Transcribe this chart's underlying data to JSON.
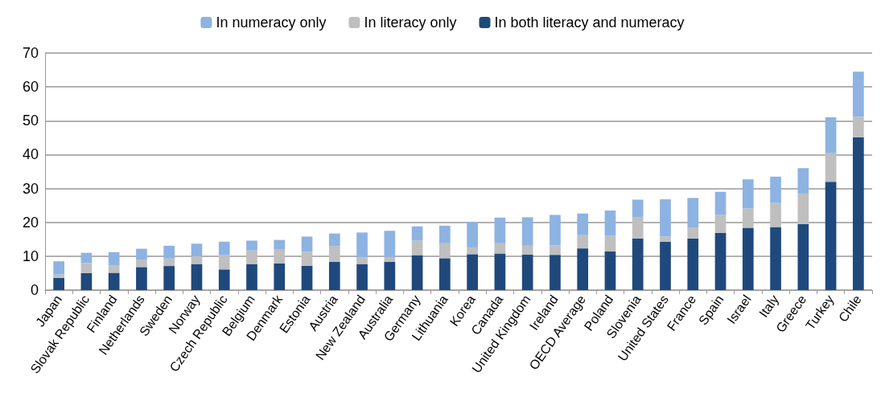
{
  "chart_data": {
    "type": "bar",
    "stacked": true,
    "categories": [
      "Japan",
      "Slovak Republic",
      "Finland",
      "Netherlands",
      "Sweden",
      "Norway",
      "Czech Republic",
      "Belgium",
      "Denmark",
      "Estonia",
      "Austria",
      "New Zealand",
      "Australia",
      "Germany",
      "Lithuania",
      "Korea",
      "Canada",
      "United Kingdom",
      "Ireland",
      "OECD Average",
      "Poland",
      "Slovenia",
      "United States",
      "France",
      "Spain",
      "Israel",
      "Italy",
      "Greece",
      "Turkey",
      "Chile"
    ],
    "series": [
      {
        "name": "In both literacy and numeracy",
        "color": "#1f497d",
        "values": [
          3.6,
          5.0,
          5.1,
          6.8,
          7.1,
          7.7,
          6.1,
          7.7,
          7.9,
          7.2,
          8.3,
          7.7,
          8.3,
          10.3,
          9.4,
          10.6,
          10.8,
          10.5,
          10.4,
          12.3,
          11.4,
          15.2,
          14.3,
          15.2,
          16.9,
          18.4,
          18.6,
          19.5,
          32.0,
          45.1
        ]
      },
      {
        "name": "In literacy only",
        "color": "#bfbfbf",
        "values": [
          1.0,
          3.0,
          2.1,
          2.2,
          2.2,
          2.3,
          4.2,
          4.0,
          4.2,
          4.1,
          4.7,
          1.9,
          1.5,
          4.3,
          4.4,
          2.0,
          3.0,
          2.6,
          2.8,
          3.9,
          4.6,
          6.4,
          1.5,
          3.3,
          5.3,
          5.7,
          7.1,
          9.0,
          8.4,
          6.1
        ]
      },
      {
        "name": "In numeracy only",
        "color": "#8db3e2",
        "values": [
          3.9,
          3.0,
          4.0,
          3.2,
          3.8,
          3.7,
          4.0,
          2.9,
          2.7,
          4.5,
          3.7,
          7.4,
          7.7,
          4.2,
          5.2,
          7.5,
          7.6,
          8.4,
          9.0,
          6.4,
          7.5,
          5.1,
          11.0,
          8.7,
          6.8,
          8.6,
          7.8,
          7.5,
          10.6,
          13.3
        ]
      }
    ],
    "ylim": [
      0,
      70
    ],
    "yticks": [
      0,
      10,
      20,
      30,
      40,
      50,
      60,
      70
    ],
    "grid": "y",
    "legend": "top"
  }
}
